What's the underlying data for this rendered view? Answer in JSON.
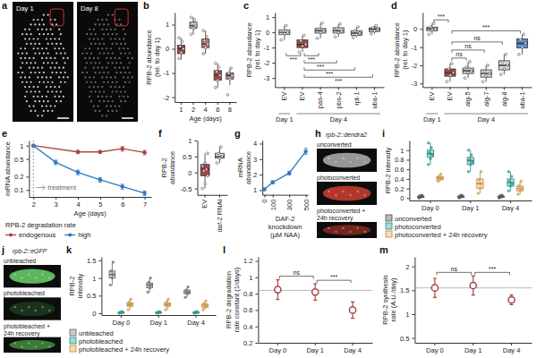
{
  "chart_data": [
    {
      "type": "image",
      "panel": "a",
      "labels": [
        "Day 1",
        "Day 8"
      ]
    },
    {
      "type": "box",
      "panel": "b",
      "y_label": [
        "RPB-2 abundance",
        "(rel. to day 1)"
      ],
      "x_label": "Age (days)",
      "categories": [
        "1",
        "2",
        "4",
        "6",
        "8"
      ],
      "colors": [
        "#a94444",
        "#f0c0c0",
        "#c97a7a",
        "#a94444",
        "#b98a8a"
      ],
      "boxes": [
        {
          "min": -0.45,
          "q1": -0.2,
          "median": 0,
          "q3": 0.15,
          "max": 0.45,
          "points": [
            -0.4,
            -0.15,
            0,
            0.1,
            0.3,
            0.45
          ]
        },
        {
          "min": 0.6,
          "q1": 0.85,
          "median": 0.95,
          "q3": 1.1,
          "max": 1.3,
          "points": [
            0.6,
            0.85,
            0.95,
            1.05,
            1.2,
            1.3
          ]
        },
        {
          "min": -0.2,
          "q1": 0.05,
          "median": 0.2,
          "q3": 0.4,
          "max": 0.75,
          "points": [
            -0.2,
            0.05,
            0.2,
            0.35,
            0.5,
            0.75
          ]
        },
        {
          "min": -1.6,
          "q1": -1.3,
          "median": -1.1,
          "q3": -0.9,
          "max": -0.6,
          "points": [
            -1.6,
            -1.3,
            -1.1,
            -0.95,
            -0.75,
            -0.6
          ]
        },
        {
          "min": -1.5,
          "q1": -1.25,
          "median": -1.1,
          "q3": -1.0,
          "max": -0.8,
          "points": [
            -1.9,
            -1.25,
            -1.1,
            -1.0,
            -0.8
          ]
        }
      ],
      "ylim": [
        -2.2,
        1.5
      ],
      "yticks": [
        -2,
        -1,
        0,
        1
      ]
    },
    {
      "type": "box",
      "panel": "c",
      "y_label": [
        "RPB-2 abundance",
        "(rel. to day 1)"
      ],
      "categories": [
        "EV",
        "EV",
        "pas-4",
        "pbs-2",
        "rpt-1",
        "uba-1"
      ],
      "groups": [
        {
          "label": "Day 1",
          "size": 1
        },
        {
          "label": "Day 4",
          "size": 5
        }
      ],
      "colors": [
        "#f2f2f2",
        "#a94444",
        "#d9d9d9",
        "#d9d9d9",
        "#d9d9d9",
        "#d9d9d9"
      ],
      "boxes": [
        {
          "min": -0.5,
          "q1": -0.15,
          "median": 0,
          "q3": 0.15,
          "max": 0.45,
          "points": [
            -0.5,
            -0.1,
            0,
            0.1,
            0.45
          ]
        },
        {
          "min": -1.3,
          "q1": -1.0,
          "median": -0.8,
          "q3": -0.5,
          "max": -0.2,
          "points": [
            -1.3,
            -0.9,
            -0.8,
            -0.55,
            -0.2
          ]
        },
        {
          "min": -0.4,
          "q1": -0.05,
          "median": 0.1,
          "q3": 0.25,
          "max": 0.6,
          "points": [
            -0.4,
            0,
            0.1,
            0.2,
            0.6
          ]
        },
        {
          "min": -0.3,
          "q1": -0.05,
          "median": 0.1,
          "q3": 0.3,
          "max": 0.55,
          "points": [
            -0.3,
            0,
            0.1,
            0.25,
            0.55
          ]
        },
        {
          "min": -0.35,
          "q1": -0.2,
          "median": -0.05,
          "q3": 0.1,
          "max": 0.35,
          "points": [
            -0.35,
            -0.15,
            -0.05,
            0.1,
            0.35
          ]
        },
        {
          "min": -0.1,
          "q1": 0.05,
          "median": 0.2,
          "q3": 0.3,
          "max": 0.45,
          "points": [
            -0.1,
            0.1,
            0.2,
            0.3,
            0.45
          ]
        }
      ],
      "brackets": [
        {
          "from": 0,
          "to": 1,
          "label": "***"
        },
        {
          "from": 1,
          "to": 2,
          "label": "***"
        },
        {
          "from": 1,
          "to": 3,
          "label": "***"
        },
        {
          "from": 1,
          "to": 4,
          "label": "***"
        },
        {
          "from": 1,
          "to": 5,
          "label": "***"
        }
      ],
      "ylim": [
        -3.6,
        1.3
      ],
      "yticks": [
        -3,
        -2,
        -1,
        0,
        1
      ]
    },
    {
      "type": "box",
      "panel": "d",
      "y_label": [
        "RPB-2 abundance",
        "(rel. to day 1)"
      ],
      "categories": [
        "EV",
        "EV",
        "alg-5",
        "alg-7",
        "alg-8",
        "uba-1"
      ],
      "groups": [
        {
          "label": "Day 1",
          "size": 1
        },
        {
          "label": "Day 4",
          "size": 5
        }
      ],
      "colors": [
        "#f2f2f2",
        "#a94444",
        "#d9d9d9",
        "#d9d9d9",
        "#d9d9d9",
        "#5b8fd0"
      ],
      "boxes": [
        {
          "min": -0.3,
          "q1": -0.1,
          "median": 0,
          "q3": 0.1,
          "max": 0.3,
          "points": [
            -0.3,
            -0.05,
            0,
            0.1,
            0.3
          ]
        },
        {
          "min": -2.9,
          "q1": -2.6,
          "median": -2.4,
          "q3": -2.2,
          "max": -1.9,
          "points": [
            -2.9,
            -2.55,
            -2.4,
            -2.2,
            -1.9
          ]
        },
        {
          "min": -2.7,
          "q1": -2.45,
          "median": -2.3,
          "q3": -2.15,
          "max": -1.8,
          "points": [
            -2.7,
            -2.4,
            -2.3,
            -2.1,
            -1.8
          ]
        },
        {
          "min": -2.9,
          "q1": -2.65,
          "median": -2.45,
          "q3": -2.25,
          "max": -2.0,
          "points": [
            -2.9,
            -2.6,
            -2.45,
            -2.3,
            -2.0
          ]
        },
        {
          "min": -2.5,
          "q1": -2.25,
          "median": -2.0,
          "q3": -1.75,
          "max": -1.4,
          "points": [
            -2.5,
            -2.2,
            -2.0,
            -1.8,
            -1.4
          ]
        },
        {
          "min": -1.4,
          "q1": -1.05,
          "median": -0.8,
          "q3": -0.55,
          "max": -0.3,
          "points": [
            -1.4,
            -1.0,
            -0.8,
            -0.6,
            -0.3
          ]
        }
      ],
      "brackets": [
        {
          "from": 0,
          "to": 1,
          "label": "***"
        },
        {
          "from": 1,
          "to": 2,
          "label": "ns"
        },
        {
          "from": 1,
          "to": 3,
          "label": "ns"
        },
        {
          "from": 1,
          "to": 4,
          "label": "ns"
        },
        {
          "from": 1,
          "to": 5,
          "label": "***"
        }
      ],
      "ylim": [
        -3.2,
        0.9
      ],
      "yticks": [
        -3,
        -2,
        -1,
        0
      ]
    },
    {
      "type": "line",
      "panel": "e",
      "log": "y",
      "marker": "circle",
      "y_label": "mRNA abundance",
      "x_label": "Age (days)",
      "legend": "bottom",
      "legend_title": "RPB-2 degradation rate",
      "series": [
        {
          "name": "endogenous",
          "color": "#a94444",
          "x": [
            2,
            4,
            5,
            6,
            7
          ],
          "values": [
            1,
            0.72,
            0.72,
            0.85,
            0.7
          ],
          "errors": [
            0.03,
            0.06,
            0.05,
            0.1,
            0.08
          ]
        },
        {
          "name": "high",
          "color": "#2f78c0",
          "x": [
            2,
            3,
            4,
            5,
            6,
            7
          ],
          "values": [
            1,
            0.42,
            0.25,
            0.17,
            0.12,
            0.085
          ],
          "errors": [
            0.03,
            0.05,
            0.03,
            0.02,
            0.015,
            0.01
          ]
        }
      ],
      "annotations": [
        {
          "text": "treatment",
          "x": 2
        }
      ],
      "xlim": [
        1.8,
        7.3
      ],
      "xticks": [
        2,
        3,
        4,
        5,
        6,
        7
      ],
      "ylim": [
        0.07,
        1.3
      ],
      "yticks": [
        0.1,
        0.2,
        0.5,
        1
      ]
    },
    {
      "type": "box",
      "panel": "f",
      "y_label": "RPB-2 abundance",
      "categories": [
        "EV",
        "daf-2 RNAi"
      ],
      "colors": [
        "#a94444",
        "#d9d9d9"
      ],
      "boxes": [
        {
          "min": -0.5,
          "q1": -0.1,
          "median": 0.1,
          "q3": 0.25,
          "max": 0.6,
          "points": [
            -0.5,
            -0.35,
            -0.1,
            0.05,
            0.1,
            0.2,
            0.3,
            0.6
          ]
        },
        {
          "min": 0.3,
          "q1": 0.45,
          "median": 0.5,
          "q3": 0.6,
          "max": 0.8,
          "points": [
            0.3,
            0.45,
            0.5,
            0.6,
            0.8
          ]
        }
      ],
      "ylim": [
        -0.7,
        1.0
      ],
      "yticks": [
        -0.5,
        0,
        0.5,
        1
      ]
    },
    {
      "type": "line",
      "panel": "g",
      "marker": "circle",
      "y_label": "mRNA abundance",
      "x_label": "DAF-2 knockdown (µM NAA)",
      "x": [
        0,
        100,
        300,
        500
      ],
      "series": [
        {
          "color": "#2f78c0",
          "values": [
            1.05,
            1.5,
            2.1,
            3.5
          ],
          "errors": [
            0.08,
            0.1,
            0.12,
            0.2
          ]
        }
      ],
      "xlim": [
        -25,
        525
      ],
      "xticks": [
        0,
        100,
        300,
        500
      ],
      "ylim": [
        0.7,
        4.2
      ],
      "yticks": [
        1,
        2,
        3,
        4
      ]
    },
    {
      "type": "image",
      "panel": "h",
      "title": "rpb-2::dendra2",
      "rows": [
        "unconverted",
        "photoconverted",
        "photoconverted + 24h recovery"
      ],
      "colors": [
        "#b0b0b0",
        "#d04030",
        "#8a2a20"
      ]
    },
    {
      "type": "box",
      "panel": "i",
      "y_label": "RPB-2 intensity",
      "legend": "bottom",
      "categories": [
        "Day 0",
        "Day 1",
        "Day 4"
      ],
      "series": [
        {
          "name": "unconverted",
          "color": "#666666",
          "boxes": [
            {
              "min": 0,
              "q1": 0.02,
              "median": 0.03,
              "q3": 0.04,
              "max": 0.06,
              "points": [
                0,
                0.02,
                0.03,
                0.05,
                0.06
              ]
            },
            {
              "min": 0,
              "q1": 0.02,
              "median": 0.03,
              "q3": 0.04,
              "max": 0.06,
              "points": [
                0,
                0.02,
                0.03,
                0.05,
                0.06
              ]
            },
            {
              "min": 0,
              "q1": 0.02,
              "median": 0.03,
              "q3": 0.04,
              "max": 0.06,
              "points": [
                0,
                0.02,
                0.03,
                0.05,
                0.06
              ]
            }
          ]
        },
        {
          "name": "photoconverted",
          "color": "#35b0a6",
          "boxes": [
            {
              "min": 0.7,
              "q1": 0.85,
              "median": 0.92,
              "q3": 1.0,
              "max": 1.15,
              "points": [
                0.7,
                0.82,
                0.9,
                0.95,
                1.05,
                1.15
              ]
            },
            {
              "min": 0.55,
              "q1": 0.7,
              "median": 0.78,
              "q3": 0.85,
              "max": 1.0,
              "points": [
                0.55,
                0.7,
                0.75,
                0.8,
                0.9,
                1.0
              ]
            },
            {
              "min": 0.15,
              "q1": 0.25,
              "median": 0.32,
              "q3": 0.4,
              "max": 0.55,
              "points": [
                0.15,
                0.25,
                0.3,
                0.35,
                0.45,
                0.55
              ]
            }
          ]
        },
        {
          "name": "photoconverted + 24h recovery",
          "color": "#f3b35a",
          "boxes": [
            {
              "min": 0.35,
              "q1": 0.38,
              "median": 0.42,
              "q3": 0.45,
              "max": 0.5,
              "points": [
                0.35,
                0.39,
                0.42,
                0.45,
                0.5
              ]
            },
            {
              "min": 0.1,
              "q1": 0.2,
              "median": 0.3,
              "q3": 0.4,
              "max": 0.55,
              "points": [
                0.1,
                0.2,
                0.3,
                0.38,
                0.55
              ]
            },
            {
              "min": 0.08,
              "q1": 0.15,
              "median": 0.2,
              "q3": 0.25,
              "max": 0.35,
              "points": [
                0.08,
                0.15,
                0.2,
                0.26,
                0.35
              ]
            }
          ]
        }
      ],
      "ylim": [
        -0.05,
        1.2
      ],
      "yticks": [
        0,
        0.2,
        0.4,
        0.6,
        0.8,
        1
      ]
    },
    {
      "type": "image",
      "panel": "j",
      "title": "rpb-2::eGFP",
      "rows": [
        "unbleached",
        "photobleached",
        "photobleached + 24h recovery"
      ],
      "colors": [
        "#6fd36f",
        "#1c3a1c",
        "#3f8f3f"
      ]
    },
    {
      "type": "box",
      "panel": "k",
      "y_label": "RPB-2 intensity",
      "legend": "bottom",
      "categories": [
        "Day 0",
        "Day 1",
        "Day 4"
      ],
      "series": [
        {
          "name": "unbleached",
          "color": "#888888",
          "boxes": [
            {
              "min": 0.8,
              "q1": 1.0,
              "median": 1.1,
              "q3": 1.2,
              "max": 1.45,
              "points": [
                0.8,
                1.0,
                1.1,
                1.2,
                1.45
              ]
            },
            {
              "min": 0.6,
              "q1": 0.72,
              "median": 0.8,
              "q3": 0.86,
              "max": 1.0,
              "points": [
                0.6,
                0.72,
                0.8,
                0.88,
                1.0
              ]
            },
            {
              "min": 0.45,
              "q1": 0.55,
              "median": 0.6,
              "q3": 0.66,
              "max": 0.75,
              "points": [
                0.45,
                0.55,
                0.6,
                0.66,
                0.75
              ]
            }
          ]
        },
        {
          "name": "photobleached",
          "color": "#35b0a6",
          "boxes": [
            {
              "min": 0,
              "q1": 0.01,
              "median": 0.02,
              "q3": 0.03,
              "max": 0.05,
              "points": [
                0,
                0.01,
                0.02,
                0.03,
                0.05
              ]
            },
            {
              "min": 0,
              "q1": 0.01,
              "median": 0.02,
              "q3": 0.03,
              "max": 0.05,
              "points": [
                0,
                0.01,
                0.02,
                0.03,
                0.05
              ]
            },
            {
              "min": 0,
              "q1": 0.01,
              "median": 0.02,
              "q3": 0.03,
              "max": 0.05,
              "points": [
                0,
                0.01,
                0.02,
                0.03,
                0.05
              ]
            }
          ]
        },
        {
          "name": "photobleached + 24h recovery",
          "color": "#f3b35a",
          "boxes": [
            {
              "min": 0.1,
              "q1": 0.2,
              "median": 0.25,
              "q3": 0.3,
              "max": 0.4,
              "points": [
                0.1,
                0.2,
                0.25,
                0.32,
                0.4
              ]
            },
            {
              "min": 0.1,
              "q1": 0.2,
              "median": 0.25,
              "q3": 0.3,
              "max": 0.4,
              "points": [
                0.1,
                0.2,
                0.25,
                0.32,
                0.4
              ]
            },
            {
              "min": 0.1,
              "q1": 0.17,
              "median": 0.22,
              "q3": 0.27,
              "max": 0.35,
              "points": [
                0.1,
                0.17,
                0.22,
                0.28,
                0.35
              ]
            }
          ]
        }
      ],
      "ylim": [
        -0.05,
        1.6
      ],
      "yticks": [
        0,
        0.5,
        1,
        1.5
      ]
    },
    {
      "type": "scatter",
      "panel": "l",
      "marker": "open-circle",
      "color": "#a94444",
      "y_label": [
        "RPB-2 degradation",
        "rate constant (1/days)"
      ],
      "categories": [
        "Day 0",
        "Day 1",
        "Day 4"
      ],
      "values": [
        0.85,
        0.82,
        0.6
      ],
      "errors": [
        0.12,
        0.1,
        0.1
      ],
      "reference": 0.84,
      "brackets": [
        {
          "from": 0,
          "to": 1,
          "label": "ns"
        },
        {
          "from": 1,
          "to": 2,
          "label": "***"
        }
      ],
      "ylim": [
        0.2,
        1.25
      ],
      "yticks": [
        0.2,
        0.4,
        0.6,
        0.8,
        1,
        1.2
      ]
    },
    {
      "type": "scatter",
      "panel": "m",
      "marker": "open-circle",
      "color": "#a94444",
      "y_label": [
        "RPB-2 synthesis",
        "rate (A.U./day)"
      ],
      "categories": [
        "Day 0",
        "Day 1",
        "Day 4"
      ],
      "values": [
        1.55,
        1.6,
        1.3
      ],
      "errors": [
        0.2,
        0.2,
        0.1
      ],
      "reference": 1.55,
      "brackets": [
        {
          "from": 0,
          "to": 1,
          "label": "ns"
        },
        {
          "from": 1,
          "to": 2,
          "label": "***"
        }
      ],
      "ylim": [
        0.4,
        2.2
      ],
      "yticks": [
        0.5,
        1,
        1.5,
        2
      ]
    }
  ]
}
